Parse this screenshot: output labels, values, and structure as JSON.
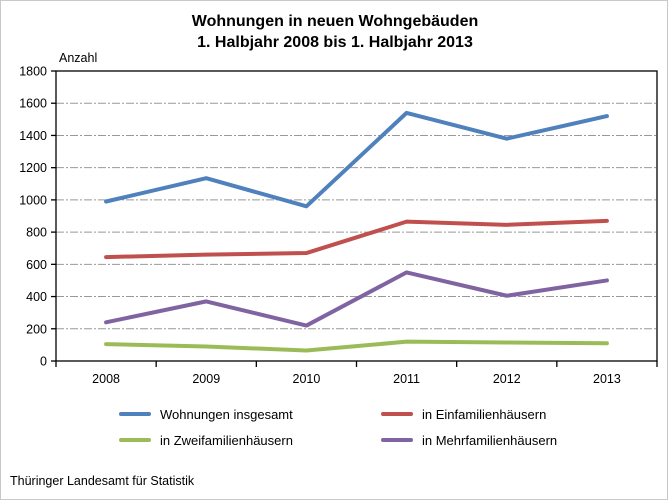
{
  "page": {
    "title_line1": "Wohnungen in neuen Wohngebäuden",
    "title_line2": "1. Halbjahr 2008 bis 1. Halbjahr 2013",
    "footer": "Thüringer Landesamt für Statistik"
  },
  "chart_data": {
    "type": "line",
    "title": "Wohnungen in neuen Wohngebäuden 1. Halbjahr 2008 bis 1. Halbjahr 2013",
    "ylabel": "Anzahl",
    "xlabel": "",
    "categories": [
      "2008",
      "2009",
      "2010",
      "2011",
      "2012",
      "2013"
    ],
    "ylim": [
      0,
      1800
    ],
    "ytick_step": 200,
    "grid": true,
    "legend_position": "bottom",
    "colors": {
      "axis": "#000000",
      "gridline": "#999999",
      "background": "#ffffff"
    },
    "series": [
      {
        "name": "Wohnungen insgesamt",
        "color": "#4F81BD",
        "values": [
          990,
          1135,
          960,
          1540,
          1380,
          1520
        ]
      },
      {
        "name": "in Einfamilienhäusern",
        "color": "#C0504D",
        "values": [
          645,
          660,
          670,
          865,
          845,
          870
        ]
      },
      {
        "name": "in Zweifamilienhäusern",
        "color": "#9BBB59",
        "values": [
          105,
          90,
          65,
          120,
          115,
          110
        ]
      },
      {
        "name": "in Mehrfamilienhäusern",
        "color": "#8064A2",
        "values": [
          240,
          370,
          220,
          550,
          405,
          500
        ]
      }
    ]
  }
}
